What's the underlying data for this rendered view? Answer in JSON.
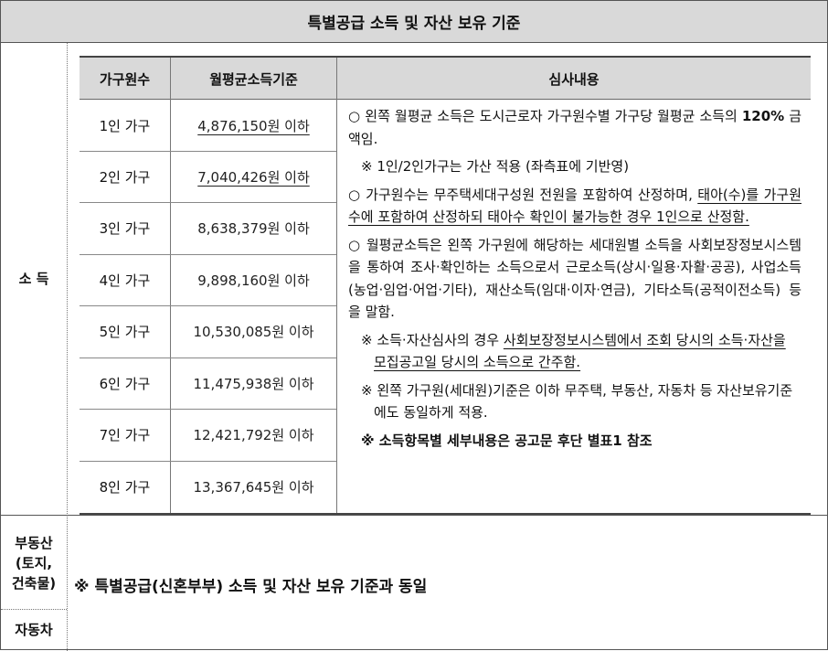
{
  "title": "특별공급 소득 및 자산 보유 기준",
  "left_labels": {
    "income": "소 득",
    "real_estate_line1": "부동산",
    "real_estate_line2": "(토지,",
    "real_estate_line3": "건축물)",
    "vehicle": "자동차"
  },
  "table": {
    "headers": [
      "가구원수",
      "월평균소득기준",
      "심사내용"
    ],
    "rows": [
      {
        "size": "1인 가구",
        "income": "4,876,150원 이하"
      },
      {
        "size": "2인 가구",
        "income": "7,040,426원 이하"
      },
      {
        "size": "3인 가구",
        "income": "8,638,379원 이하"
      },
      {
        "size": "4인 가구",
        "income": "9,898,160원 이하"
      },
      {
        "size": "5인 가구",
        "income": "10,530,085원 이하"
      },
      {
        "size": "6인 가구",
        "income": "11,475,938원 이하"
      },
      {
        "size": "7인 가구",
        "income": "12,421,792원 이하"
      },
      {
        "size": "8인 가구",
        "income": "13,367,645원 이하"
      }
    ]
  },
  "review": {
    "p1_a": "○ 왼쪽 월평균 소득은 도시근로자 가구원수별 가구당 월평균 소득의 ",
    "p1_bold": "120%",
    "p1_b": " 금액임.",
    "n1": "※ 1인/2인가구는 가산 적용 (좌측표에 기반영)",
    "p2_a": "○ 가구원수는 무주택세대구성원 전원을 포함하여 산정하며, ",
    "p2_ul": "태아(수)를 가구원수에 포함하여 산정하되 태아수 확인이 불가능한 경우 1인으로 산정함.",
    "p3": "○ 월평균소득은 왼쪽 가구원에 해당하는 세대원별 소득을 사회보장정보시스템을 통하여 조사·확인하는 소득으로서 근로소득(상시·일용·자활·공공), 사업소득(농업·임업·어업·기타), 재산소득(임대·이자·연금), 기타소득(공적이전소득) 등을 말함.",
    "n2_a": "※ 소득·자산심사의 경우 ",
    "n2_ul": "사회보장정보시스템에서 조회 당시의 소득·자산을 모집공고일 당시의 소득으로 간주함.",
    "n3": "※ 왼쪽 가구원(세대원)기준은 이하 무주택, 부동산, 자동차 등 자산보유기준에도 동일하게 적용.",
    "n4": "※ 소득항목별 세부내용은 공고문 후단 별표1 참조"
  },
  "bottom_note": "※ 특별공급(신혼부부) 소득 및 자산 보유 기준과 동일"
}
